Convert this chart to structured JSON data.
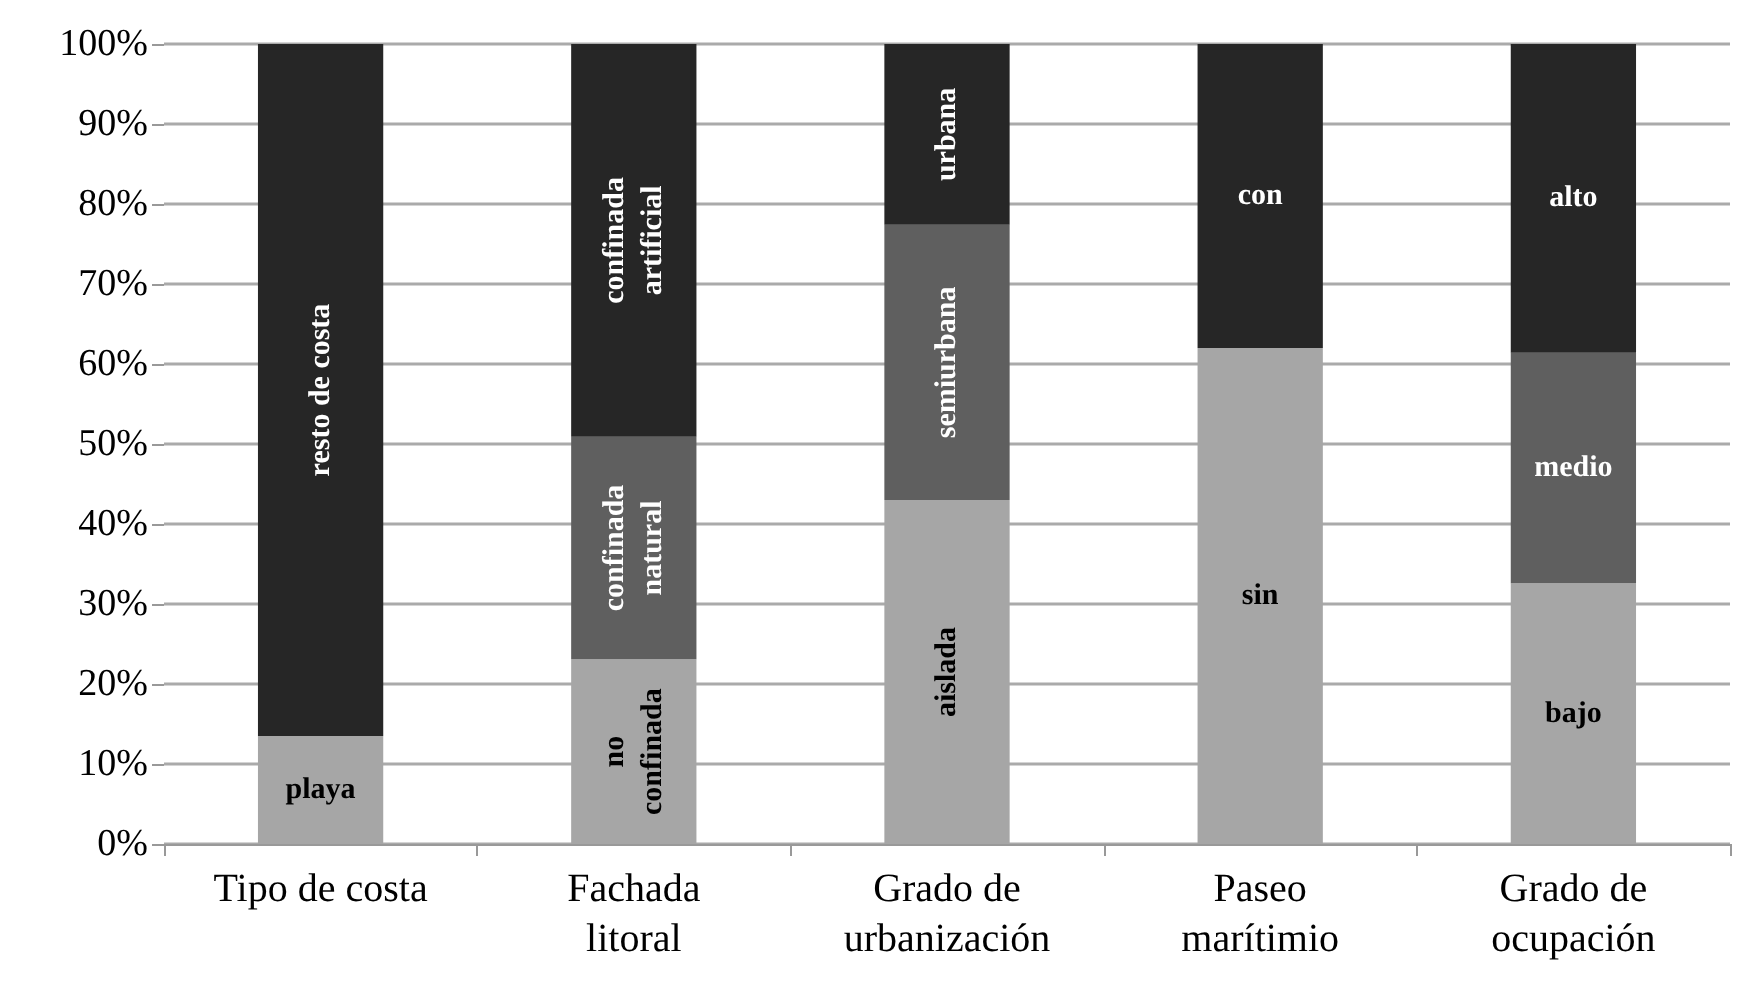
{
  "chart_data": {
    "type": "bar",
    "stacked": true,
    "categories": [
      "Tipo de costa",
      "Fachada litoral",
      "Grado de urbanización",
      "Paseo marítimio",
      "Grado de ocupación"
    ],
    "series": [
      {
        "color": "#a6a6a6",
        "values": [
          13.5,
          23.1,
          43.0,
          62.0,
          32.6
        ],
        "value_labels": [
          "playa",
          "no confinada",
          "aislada",
          "sin",
          "bajo"
        ]
      },
      {
        "color": "#5f5f5f",
        "values": [
          null,
          27.8,
          34.4,
          null,
          28.8
        ],
        "value_labels": [
          null,
          "confinada natural",
          "semiurbana",
          null,
          "medio"
        ]
      },
      {
        "color": "#262626",
        "values": [
          86.5,
          49.1,
          22.6,
          38.0,
          38.6
        ],
        "value_labels": [
          "resto de costa",
          "confinada artificial",
          "urbana",
          "con",
          "alto"
        ]
      }
    ],
    "ylim": [
      0,
      100
    ],
    "yticks": [
      {
        "value": 0,
        "label": "0%"
      },
      {
        "value": 10,
        "label": "10%"
      },
      {
        "value": 20,
        "label": "20%"
      },
      {
        "value": 30,
        "label": "30%"
      },
      {
        "value": 40,
        "label": "40%"
      },
      {
        "value": 50,
        "label": "50%"
      },
      {
        "value": 60,
        "label": "60%"
      },
      {
        "value": 70,
        "label": "70%"
      },
      {
        "value": 80,
        "label": "80%"
      },
      {
        "value": 90,
        "label": "90%"
      },
      {
        "value": 100,
        "label": "100%"
      }
    ],
    "grid": "y"
  }
}
